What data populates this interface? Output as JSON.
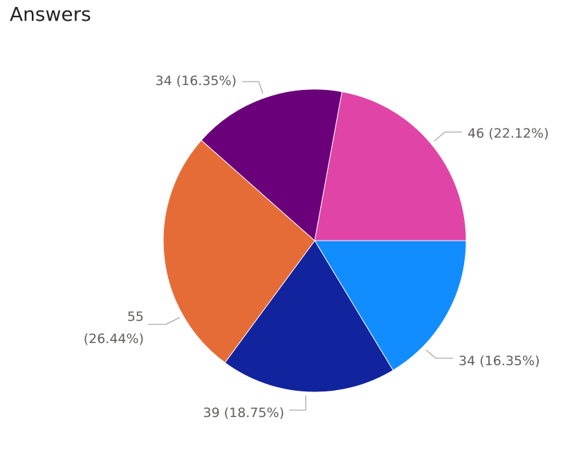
{
  "chart_data": {
    "type": "pie",
    "title": "Answers",
    "start_angle_deg": 0,
    "direction": "clockwise",
    "slices": [
      {
        "value": 34,
        "label": "34 (16.35%)",
        "color": "#118dff"
      },
      {
        "value": 39,
        "label": "39 (18.75%)",
        "color": "#12239e"
      },
      {
        "value": 55,
        "label_lines": [
          "55",
          "(26.44%)"
        ],
        "color": "#e66c37"
      },
      {
        "value": 34,
        "label": "34 (16.35%)",
        "color": "#6b007b"
      },
      {
        "value": 46,
        "label": "46 (22.12%)",
        "color": "#e044a7"
      }
    ]
  }
}
